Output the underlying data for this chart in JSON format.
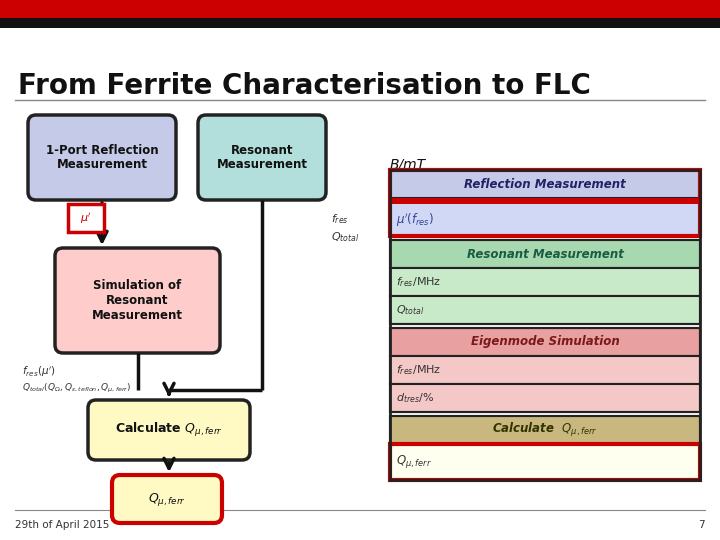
{
  "title": "From Ferrite Characterisation to FLC",
  "bg_color": "#ffffff",
  "top_bar_red": "#cc0000",
  "top_bar_black": "#111111",
  "footer_text": "29th of April 2015",
  "footer_page": "7",
  "box1_text": "1-Port Reflection\nMeasurement",
  "box1_color": "#c5cae9",
  "box2_text": "Resonant\nMeasurement",
  "box2_color": "#b2dfdb",
  "box3_text": "Simulation of\nResonant\nMeasurement",
  "box3_color": "#ffcccc",
  "box4_text": "Calculate $Q_{\\mu,ferr}$",
  "box4_color": "#fff9c4",
  "box5_text": "$Q_{\\mu,ferr}$",
  "box5_color": "#fff9c4",
  "box5_border": "#cc0000",
  "mu_box_text": "$\\mu'$",
  "mu_box_border": "#cc0000",
  "fres_label": "$f_{res}$",
  "qtotal_label": "$Q_{total}$",
  "fres_mu_label": "$f_{res}(\\mu')$",
  "qtotal_formula": "$Q_{total}(Q_{\\Omega},Q_{\\varepsilon,teflon},Q_{\\mu,ferr})$",
  "blmt_label": "B/mT",
  "section1_title": "Reflection Measurement",
  "section1_bg": "#c5cae9",
  "section1_data_bg": "#d0d8f5",
  "section1_data": [
    "$\\mu'(f_{res})$"
  ],
  "section1_red_border": true,
  "section2_title": "Resonant Measurement",
  "section2_bg": "#a8d8b0",
  "section2_data_bg": "#c8eac8",
  "section2_data": [
    "$f_{res}$/MHz",
    "$Q_{total}$"
  ],
  "section3_title": "Eigenmode Simulation",
  "section3_bg": "#e8a0a0",
  "section3_data_bg": "#f5c8c8",
  "section3_data": [
    "$f_{res}$/MHz",
    "$d_{tres}$/%"
  ],
  "section4_title": "Calculate  $Q_{\\mu, ferr}$",
  "section4_bg": "#c8b880",
  "section4_data_bg": "#fffff0",
  "section4_data": [
    "$Q_{\\mu, ferr}$"
  ],
  "section4_red_border": true
}
